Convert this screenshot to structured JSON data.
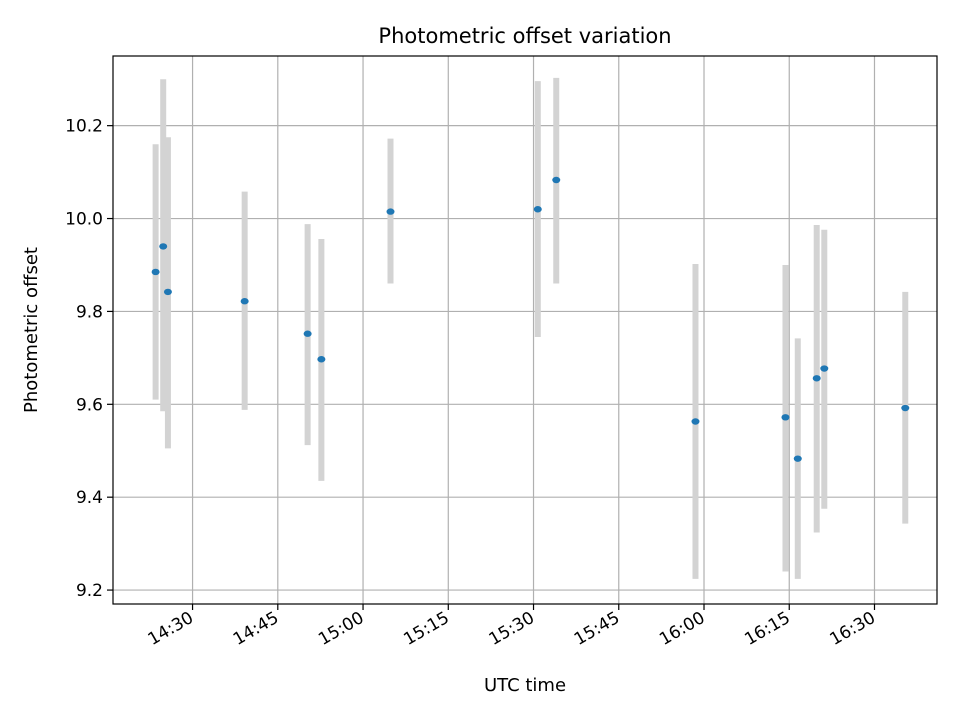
{
  "chart_data": {
    "type": "scatter",
    "title": "Photometric offset variation",
    "xlabel": "UTC time",
    "ylabel": "Photometric offset",
    "grid": true,
    "x_ticks": [
      "14:30",
      "14:45",
      "15:00",
      "15:15",
      "15:30",
      "15:45",
      "16:00",
      "16:15",
      "16:30"
    ],
    "y_ticks": [
      "9.2",
      "9.4",
      "9.6",
      "9.8",
      "10.0",
      "10.2"
    ],
    "xlim": [
      "14:16",
      "16:41"
    ],
    "ylim": [
      9.17,
      10.35
    ],
    "marker_color": "#1f77b4",
    "errorbar_color": "#d3d3d3",
    "series": [
      {
        "points": [
          {
            "x": "14:23:30",
            "y": 9.885,
            "ylow": 9.61,
            "yhigh": 10.16
          },
          {
            "x": "14:24:50",
            "y": 9.94,
            "ylow": 9.585,
            "yhigh": 10.3
          },
          {
            "x": "14:25:40",
            "y": 9.842,
            "ylow": 9.505,
            "yhigh": 10.175
          },
          {
            "x": "14:39:10",
            "y": 9.822,
            "ylow": 9.588,
            "yhigh": 10.058
          },
          {
            "x": "14:50:15",
            "y": 9.752,
            "ylow": 9.512,
            "yhigh": 9.988
          },
          {
            "x": "14:52:40",
            "y": 9.697,
            "ylow": 9.435,
            "yhigh": 9.956
          },
          {
            "x": "15:04:50",
            "y": 10.015,
            "ylow": 9.86,
            "yhigh": 10.172
          },
          {
            "x": "15:30:45",
            "y": 10.02,
            "ylow": 9.745,
            "yhigh": 10.296
          },
          {
            "x": "15:34:00",
            "y": 10.083,
            "ylow": 9.86,
            "yhigh": 10.303
          },
          {
            "x": "15:58:30",
            "y": 9.563,
            "ylow": 9.224,
            "yhigh": 9.902
          },
          {
            "x": "16:14:20",
            "y": 9.572,
            "ylow": 9.24,
            "yhigh": 9.9
          },
          {
            "x": "16:16:30",
            "y": 9.483,
            "ylow": 9.224,
            "yhigh": 9.742
          },
          {
            "x": "16:19:50",
            "y": 9.656,
            "ylow": 9.324,
            "yhigh": 9.986
          },
          {
            "x": "16:21:10",
            "y": 9.677,
            "ylow": 9.375,
            "yhigh": 9.976
          },
          {
            "x": "16:35:25",
            "y": 9.592,
            "ylow": 9.343,
            "yhigh": 9.842
          }
        ]
      }
    ]
  }
}
